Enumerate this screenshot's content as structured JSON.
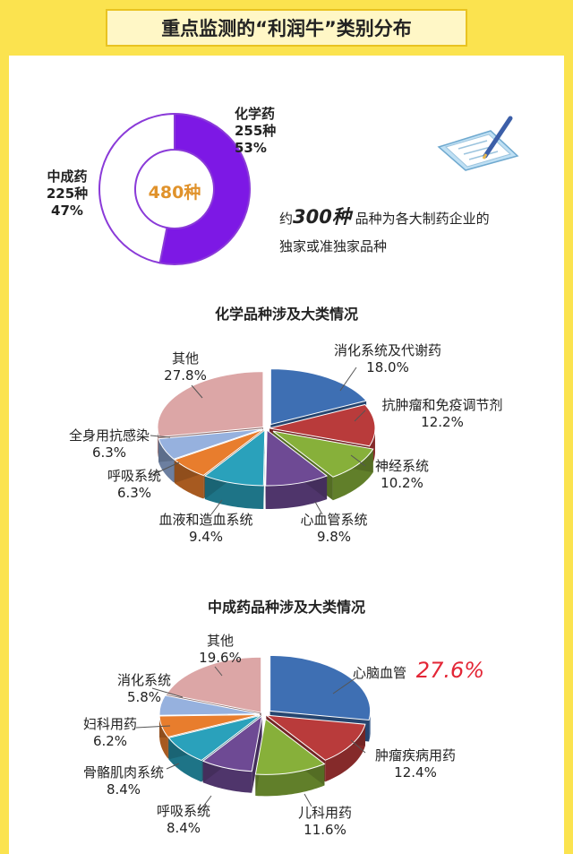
{
  "page_title": "重点监测的“利润牛”类别分布",
  "total": {
    "center_label": "480种",
    "chemical": {
      "name": "化学药",
      "count": "255种",
      "percent": "53%"
    },
    "tcm": {
      "name": "中成药",
      "count": "225种",
      "percent": "47%"
    }
  },
  "note": {
    "prefix": "约",
    "number": "300种",
    "suffix": "品种为各大制药企业的",
    "line2": "独家或准独家品种"
  },
  "colors": {
    "purple": "#7d18e5",
    "blue": "#3e6fb3",
    "red": "#b93b3b",
    "green": "#87b03a",
    "violet": "#6e4a94",
    "teal": "#2aa1bb",
    "orange": "#e87d2d",
    "lightblue": "#96b1de",
    "pink": "#dca6a6",
    "yellow": "#fbe34f"
  },
  "chart_data": [
    {
      "type": "pie",
      "title": "",
      "categories": [
        "化学药",
        "中成药"
      ],
      "values": [
        255,
        225
      ],
      "percents": [
        "53%",
        "47%"
      ]
    },
    {
      "type": "pie",
      "title": "化学品种涉及大类情况",
      "slices": [
        {
          "name": "消化系统及代谢药",
          "value": 18.0,
          "label": "18.0%"
        },
        {
          "name": "抗肿瘤和免疫调节剂",
          "value": 12.2,
          "label": "12.2%"
        },
        {
          "name": "神经系统",
          "value": 10.2,
          "label": "10.2%"
        },
        {
          "name": "心血管系统",
          "value": 9.8,
          "label": "9.8%"
        },
        {
          "name": "血液和造血系统",
          "value": 9.4,
          "label": "9.4%"
        },
        {
          "name": "呼吸系统",
          "value": 6.3,
          "label": "6.3%"
        },
        {
          "name": "全身用抗感染",
          "value": 6.3,
          "label": "6.3%"
        },
        {
          "name": "其他",
          "value": 27.8,
          "label": "27.8%"
        }
      ]
    },
    {
      "type": "pie",
      "title": "中成药品种涉及大类情况",
      "slices": [
        {
          "name": "心脑血管",
          "value": 27.6,
          "label": "27.6%"
        },
        {
          "name": "肿瘤疾病用药",
          "value": 12.4,
          "label": "12.4%"
        },
        {
          "name": "儿科用药",
          "value": 11.6,
          "label": "11.6%"
        },
        {
          "name": "呼吸系统",
          "value": 8.4,
          "label": "8.4%"
        },
        {
          "name": "骨骼肌肉系统",
          "value": 8.4,
          "label": "8.4%"
        },
        {
          "name": "妇科用药",
          "value": 6.2,
          "label": "6.2%"
        },
        {
          "name": "消化系统",
          "value": 5.8,
          "label": "5.8%"
        },
        {
          "name": "其他",
          "value": 19.6,
          "label": "19.6%"
        }
      ]
    }
  ]
}
